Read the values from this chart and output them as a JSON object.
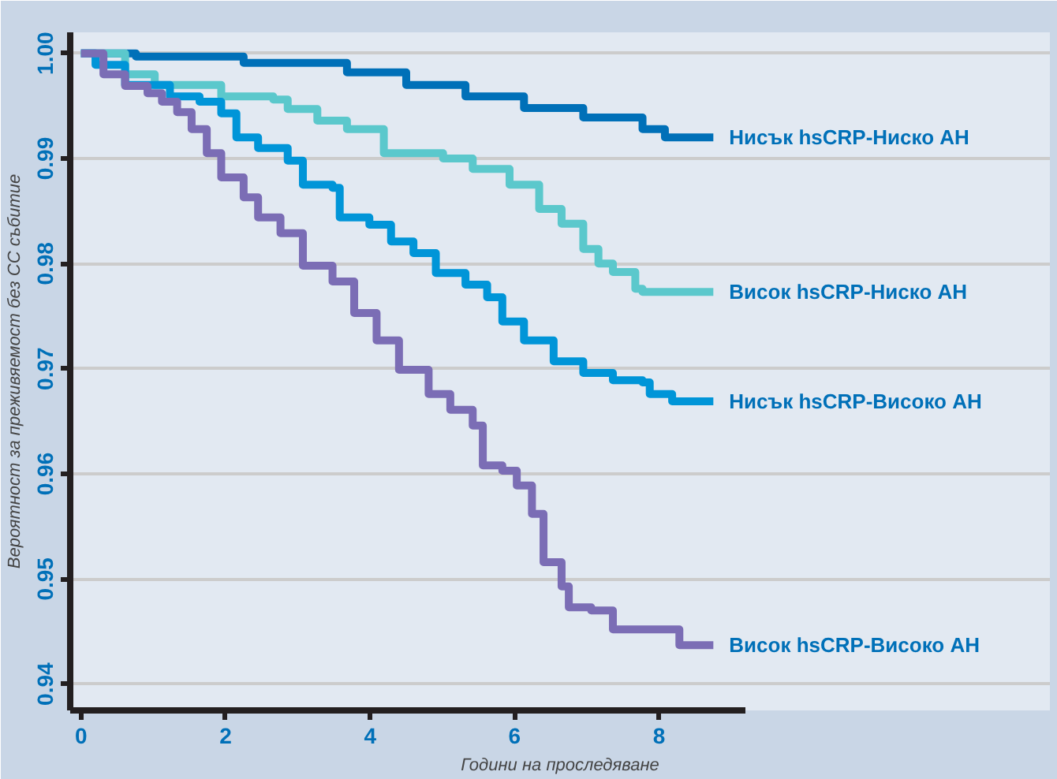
{
  "chart_data": {
    "type": "step",
    "xlabel": "Години на проследяване",
    "ylabel": "Вероятност за преживяемост без СС събитие",
    "xlim": [
      -0.15,
      9.2
    ],
    "ylim": [
      0.9375,
      1.002
    ],
    "xticks": [
      0,
      2,
      4,
      6,
      8
    ],
    "yticks": [
      0.94,
      0.95,
      0.96,
      0.97,
      0.98,
      0.99,
      {
        "value": 1.0,
        "label": "1.00"
      }
    ],
    "grid": "y",
    "legend": false,
    "line_style": "solid",
    "marker": "none",
    "series": [
      {
        "name": "Нисък hsCRP-Ниско АН",
        "color": "#0070b8",
        "x": [
          0,
          0.76,
          2.25,
          3.68,
          4.5,
          5.32,
          6.13,
          6.95,
          7.77,
          8.08,
          8.75
        ],
        "values": [
          1.0,
          0.9997,
          0.9991,
          0.9982,
          0.997,
          0.9959,
          0.9948,
          0.9939,
          0.9928,
          0.992,
          0.992
        ]
      },
      {
        "name": "Висок hsCRP-Ниско АН",
        "color": "#5bc8cc",
        "x": [
          0,
          0.61,
          1.02,
          1.94,
          2.66,
          2.86,
          3.27,
          3.68,
          4.19,
          5.01,
          5.32,
          5.42,
          5.93,
          6.34,
          6.65,
          6.95,
          7.16,
          7.36,
          7.67,
          7.77,
          8.75
        ],
        "values": [
          1.0,
          0.998,
          0.997,
          0.9959,
          0.9956,
          0.9947,
          0.9936,
          0.9928,
          0.9905,
          0.99,
          0.99,
          0.989,
          0.9875,
          0.9852,
          0.9838,
          0.9814,
          0.98,
          0.9792,
          0.9776,
          0.9773,
          0.9773
        ]
      },
      {
        "name": "Нисък hsCRP-Високо АН",
        "color": "#0095d8",
        "x": [
          0,
          0.2,
          0.61,
          1.23,
          1.64,
          1.94,
          2.15,
          2.45,
          2.86,
          3.07,
          3.48,
          3.58,
          3.99,
          4.29,
          4.6,
          4.91,
          5.32,
          5.62,
          5.83,
          6.13,
          6.54,
          6.95,
          7.36,
          7.77,
          7.87,
          8.18,
          8.75
        ],
        "values": [
          1.0,
          0.9989,
          0.997,
          0.9959,
          0.9954,
          0.9943,
          0.992,
          0.991,
          0.9898,
          0.9875,
          0.9872,
          0.9844,
          0.9837,
          0.9821,
          0.981,
          0.9791,
          0.978,
          0.9768,
          0.9745,
          0.9727,
          0.9707,
          0.9696,
          0.9689,
          0.9687,
          0.9676,
          0.9669,
          0.9669
        ]
      },
      {
        "name": "Висок hsCRP-Високо АН",
        "color": "#7b6db5",
        "x": [
          0,
          0.31,
          0.61,
          0.92,
          1.12,
          1.33,
          1.53,
          1.74,
          1.94,
          2.25,
          2.45,
          2.76,
          3.07,
          3.48,
          3.78,
          4.09,
          4.4,
          4.81,
          5.11,
          5.42,
          5.56,
          5.83,
          6.03,
          6.24,
          6.4,
          6.65,
          6.75,
          7.06,
          7.36,
          8.22,
          8.28,
          8.75
        ],
        "values": [
          1.0,
          0.998,
          0.9969,
          0.9962,
          0.9954,
          0.9944,
          0.9928,
          0.9905,
          0.9882,
          0.9863,
          0.9844,
          0.9829,
          0.9798,
          0.9783,
          0.9753,
          0.9727,
          0.9699,
          0.9676,
          0.9661,
          0.9646,
          0.9608,
          0.9603,
          0.9589,
          0.9562,
          0.9516,
          0.9493,
          0.9473,
          0.947,
          0.9452,
          0.9452,
          0.9437,
          0.9437
        ]
      }
    ]
  }
}
